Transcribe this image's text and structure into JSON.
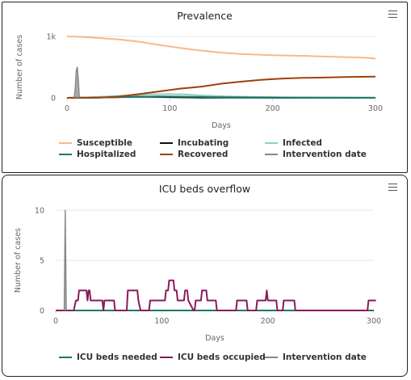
{
  "chart_data": [
    {
      "type": "line",
      "title": "Prevalence",
      "xlabel": "Days",
      "ylabel": "Number of cases",
      "xlim": [
        0,
        300
      ],
      "ylim": [
        0,
        1000
      ],
      "x_ticks": [
        "0",
        "100",
        "200",
        "300"
      ],
      "y_ticks": [
        "0",
        "1k"
      ],
      "legend_position": "bottom",
      "series": [
        {
          "name": "Susceptible",
          "color": "#f7b98a",
          "points": [
            [
              0,
              1000
            ],
            [
              10,
              995
            ],
            [
              30,
              975
            ],
            [
              50,
              950
            ],
            [
              70,
              915
            ],
            [
              90,
              860
            ],
            [
              110,
              810
            ],
            [
              130,
              770
            ],
            [
              150,
              735
            ],
            [
              170,
              712
            ],
            [
              200,
              695
            ],
            [
              230,
              683
            ],
            [
              260,
              667
            ],
            [
              290,
              653
            ],
            [
              300,
              640
            ]
          ]
        },
        {
          "name": "Incubating",
          "color": "#111111",
          "points": [
            [
              0,
              0
            ],
            [
              20,
              3
            ],
            [
              50,
              12
            ],
            [
              70,
              18
            ],
            [
              90,
              15
            ],
            [
              110,
              8
            ],
            [
              130,
              4
            ],
            [
              160,
              2
            ],
            [
              200,
              1
            ],
            [
              300,
              0
            ]
          ]
        },
        {
          "name": "Infected",
          "color": "#8fd1c1",
          "points": [
            [
              0,
              0
            ],
            [
              20,
              8
            ],
            [
              40,
              22
            ],
            [
              60,
              40
            ],
            [
              80,
              55
            ],
            [
              100,
              62
            ],
            [
              115,
              55
            ],
            [
              130,
              40
            ],
            [
              150,
              26
            ],
            [
              180,
              14
            ],
            [
              220,
              6
            ],
            [
              260,
              3
            ],
            [
              300,
              2
            ]
          ]
        },
        {
          "name": "Hospitalized",
          "color": "#1e7a68",
          "points": [
            [
              0,
              0
            ],
            [
              30,
              4
            ],
            [
              60,
              14
            ],
            [
              90,
              22
            ],
            [
              110,
              20
            ],
            [
              140,
              12
            ],
            [
              180,
              6
            ],
            [
              230,
              3
            ],
            [
              300,
              1
            ]
          ]
        },
        {
          "name": "Recovered",
          "color": "#a0400b",
          "points": [
            [
              0,
              0
            ],
            [
              30,
              3
            ],
            [
              50,
              20
            ],
            [
              70,
              60
            ],
            [
              90,
              105
            ],
            [
              110,
              150
            ],
            [
              130,
              180
            ],
            [
              150,
              230
            ],
            [
              170,
              265
            ],
            [
              190,
              295
            ],
            [
              210,
              315
            ],
            [
              230,
              325
            ],
            [
              250,
              330
            ],
            [
              270,
              338
            ],
            [
              300,
              345
            ]
          ]
        },
        {
          "name": "Intervention date",
          "color": "#888888",
          "points": [
            [
              7,
              0
            ],
            [
              8,
              160
            ],
            [
              9,
              450
            ],
            [
              10,
              500
            ],
            [
              11,
              300
            ],
            [
              12,
              0
            ]
          ]
        }
      ]
    },
    {
      "type": "line",
      "title": "ICU beds overflow",
      "xlabel": "Days",
      "ylabel": "Number of cases",
      "xlim": [
        0,
        300
      ],
      "ylim": [
        0,
        10
      ],
      "x_ticks": [
        "0",
        "100",
        "200",
        "300"
      ],
      "y_ticks": [
        "0",
        "5",
        "10"
      ],
      "legend_position": "bottom",
      "series": [
        {
          "name": "ICU beds needed",
          "color": "#1e7a68",
          "points": [
            [
              0,
              0
            ],
            [
              300,
              0
            ]
          ]
        },
        {
          "name": "ICU beds occupied",
          "color": "#8b1a5c",
          "points": [
            [
              0,
              0
            ],
            [
              17,
              0
            ],
            [
              19,
              1
            ],
            [
              21,
              1
            ],
            [
              22,
              2
            ],
            [
              29,
              2
            ],
            [
              30,
              1
            ],
            [
              31,
              2
            ],
            [
              32,
              2
            ],
            [
              33,
              1
            ],
            [
              44,
              1
            ],
            [
              45,
              0
            ],
            [
              46,
              1
            ],
            [
              55,
              1
            ],
            [
              56,
              0
            ],
            [
              67,
              0
            ],
            [
              68,
              2
            ],
            [
              77,
              2
            ],
            [
              78,
              1
            ],
            [
              80,
              0
            ],
            [
              88,
              0
            ],
            [
              89,
              1
            ],
            [
              103,
              1
            ],
            [
              104,
              2
            ],
            [
              106,
              2
            ],
            [
              107,
              3
            ],
            [
              111,
              3
            ],
            [
              112,
              2
            ],
            [
              114,
              2
            ],
            [
              115,
              1
            ],
            [
              121,
              1
            ],
            [
              122,
              2
            ],
            [
              124,
              2
            ],
            [
              125,
              1
            ],
            [
              130,
              0
            ],
            [
              131,
              0
            ],
            [
              132,
              1
            ],
            [
              137,
              1
            ],
            [
              138,
              2
            ],
            [
              142,
              2
            ],
            [
              143,
              1
            ],
            [
              151,
              1
            ],
            [
              152,
              0
            ],
            [
              170,
              0
            ],
            [
              171,
              1
            ],
            [
              180,
              1
            ],
            [
              181,
              0
            ],
            [
              189,
              0
            ],
            [
              190,
              1
            ],
            [
              198,
              1
            ],
            [
              199,
              2
            ],
            [
              200,
              1
            ],
            [
              208,
              1
            ],
            [
              209,
              0
            ],
            [
              214,
              0
            ],
            [
              215,
              1
            ],
            [
              225,
              1
            ],
            [
              226,
              0
            ],
            [
              294,
              0
            ],
            [
              295,
              1
            ],
            [
              302,
              1
            ]
          ]
        },
        {
          "name": "Intervention date",
          "color": "#888888",
          "points": [
            [
              8,
              0
            ],
            [
              9,
              10
            ],
            [
              10,
              0
            ]
          ]
        }
      ]
    }
  ]
}
